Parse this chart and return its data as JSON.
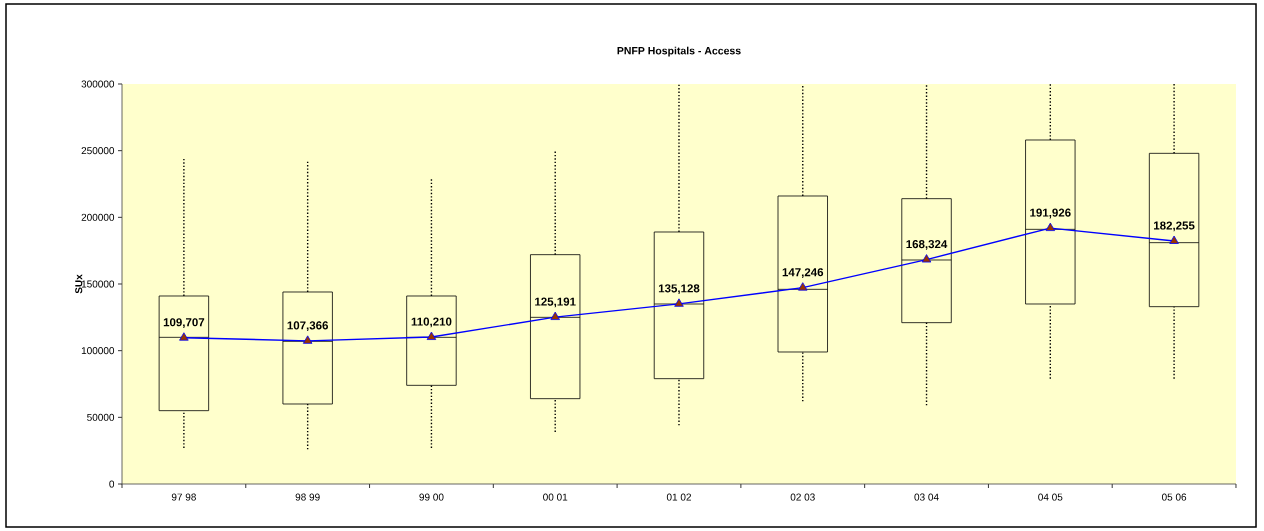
{
  "chart_data": {
    "type": "box",
    "title": "PNFP Hospitals - Access",
    "ylabel": "SUx",
    "categories": [
      "97 98",
      "98 99",
      "99 00",
      "00 01",
      "01 02",
      "02 03",
      "03 04",
      "04 05",
      "05 06"
    ],
    "boxes": [
      {
        "low": 27000,
        "q1": 55000,
        "median": 110000,
        "q3": 141000,
        "high": 245000
      },
      {
        "low": 26000,
        "q1": 60000,
        "median": 107000,
        "q3": 144000,
        "high": 242000
      },
      {
        "low": 27000,
        "q1": 74000,
        "median": 110000,
        "q3": 141000,
        "high": 230000
      },
      {
        "low": 39000,
        "q1": 64000,
        "median": 125000,
        "q3": 172000,
        "high": 250000
      },
      {
        "low": 44000,
        "q1": 79000,
        "median": 135000,
        "q3": 189000,
        "high": 300000
      },
      {
        "low": 62000,
        "q1": 99000,
        "median": 146000,
        "q3": 216000,
        "high": 300000
      },
      {
        "low": 59000,
        "q1": 121000,
        "median": 168000,
        "q3": 214000,
        "high": 300000
      },
      {
        "low": 79000,
        "q1": 135000,
        "median": 191000,
        "q3": 258000,
        "high": 300000
      },
      {
        "low": 79000,
        "q1": 133000,
        "median": 181000,
        "q3": 248000,
        "high": 300000
      }
    ],
    "series": [
      {
        "type": "line",
        "color": "#0000ff",
        "values": [
          109707,
          107366,
          110210,
          125191,
          135128,
          147246,
          168324,
          191926,
          182255
        ],
        "value_labels": [
          "109,707",
          "107,366",
          "110,210",
          "125,191",
          "135,128",
          "147,246",
          "168,324",
          "191,926",
          "182,255"
        ]
      }
    ],
    "marker": "triangle",
    "ylim": [
      0,
      300000
    ],
    "yticks": [
      0,
      50000,
      100000,
      150000,
      200000,
      250000,
      300000
    ]
  }
}
